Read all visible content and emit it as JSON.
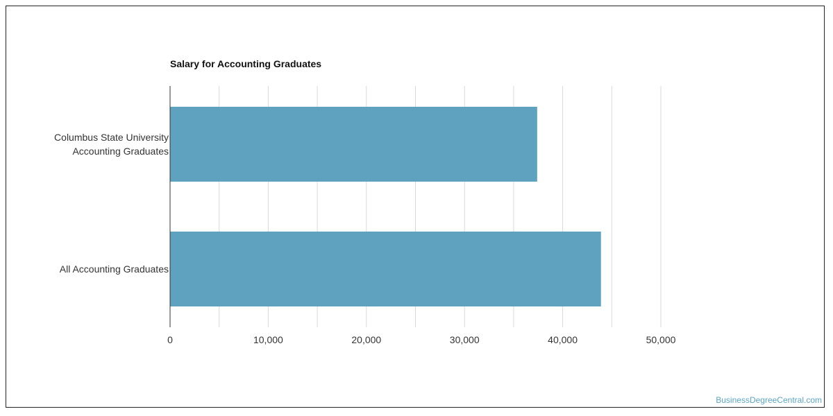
{
  "chart_data": {
    "type": "bar",
    "orientation": "horizontal",
    "title": "Salary for Accounting Graduates",
    "categories": [
      "Columbus State University Accounting Graduates",
      "All Accounting Graduates"
    ],
    "category_lines": [
      [
        "Columbus State University",
        "Accounting Graduates"
      ],
      [
        "All Accounting Graduates"
      ]
    ],
    "values": [
      37400,
      43900
    ],
    "xlim": [
      0,
      55000
    ],
    "xticks": [
      0,
      10000,
      20000,
      30000,
      40000,
      50000
    ],
    "xtick_labels": [
      "0",
      "10,000",
      "20,000",
      "30,000",
      "40,000",
      "50,000"
    ],
    "xlabel": "",
    "ylabel": "",
    "grid": true,
    "bar_color": "#5fa2bf",
    "legend": "none"
  },
  "watermark": "BusinessDegreeCentral.com",
  "colors": {
    "gridline": "#d9d9d9",
    "axis": "#333333",
    "tick_text": "#333333",
    "watermark": "#5aa5c4"
  }
}
